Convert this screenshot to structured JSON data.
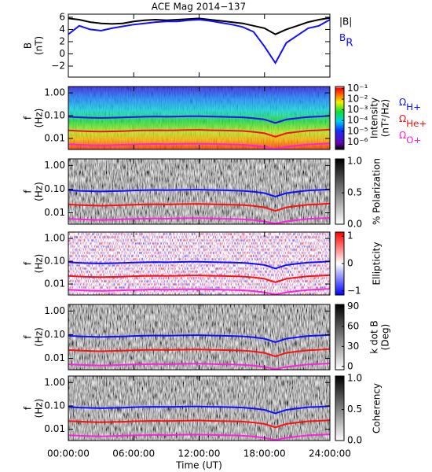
{
  "chart_data": [
    {
      "type": "line",
      "title": "ACE Mag 2014−137",
      "ylabel": [
        "B",
        "(nT)"
      ],
      "xlim": [
        0,
        24
      ],
      "ylim": [
        -3.8,
        6.5
      ],
      "yticks": [
        6,
        4,
        2,
        0,
        {
          "value": -2,
          "label": "−2"
        }
      ],
      "x": [
        0,
        1,
        2,
        3,
        4,
        5,
        6,
        7,
        8,
        9,
        10,
        11,
        12,
        13,
        14,
        15,
        16,
        17,
        18,
        19,
        20,
        21,
        22,
        23,
        24
      ],
      "series": [
        {
          "name": "|B|",
          "color": "#000000",
          "values": [
            5.8,
            5.6,
            5.2,
            5.0,
            4.9,
            5.0,
            5.3,
            5.5,
            5.6,
            5.5,
            5.6,
            5.7,
            5.8,
            5.6,
            5.4,
            5.2,
            5.0,
            4.6,
            4.2,
            3.2,
            4.0,
            4.6,
            5.2,
            5.6,
            5.9
          ]
        },
        {
          "name": "B",
          "sub": "R",
          "color": "#1010ff",
          "values": [
            3.2,
            4.6,
            4.0,
            3.8,
            4.2,
            4.5,
            4.8,
            5.0,
            5.2,
            5.3,
            5.3,
            5.5,
            5.6,
            5.4,
            5.1,
            4.8,
            4.4,
            3.6,
            1.2,
            -1.5,
            1.8,
            3.0,
            4.2,
            4.6,
            5.6
          ]
        }
      ]
    },
    {
      "type": "spectrogram",
      "style": "intensity",
      "ylabel": [
        "f",
        "(Hz)"
      ],
      "xlim": [
        0,
        24
      ],
      "ylim": [
        0.0033,
        1.9
      ],
      "log_y": true,
      "yticks": [
        {
          "value": 1,
          "label": "1.00"
        },
        {
          "value": 0.1,
          "label": "0.10"
        },
        {
          "value": 0.01,
          "label": "0.01"
        }
      ],
      "colorbar": {
        "label": [
          "Intensity",
          "(nT²/Hz)"
        ],
        "lim": [
          2e-07,
          0.15
        ],
        "log": true,
        "ticks": [
          {
            "value": 0.1,
            "label": "10⁻¹"
          },
          {
            "value": 0.01,
            "label": "10⁻²"
          },
          {
            "value": 0.001,
            "label": "10⁻³"
          },
          {
            "value": 0.0001,
            "label": "10⁻⁴"
          },
          {
            "value": 1e-05,
            "label": "10⁻⁵"
          },
          {
            "value": 1e-06,
            "label": "10⁻⁶"
          }
        ]
      },
      "x": [
        0,
        1,
        2,
        3,
        4,
        5,
        6,
        7,
        8,
        9,
        10,
        11,
        12,
        13,
        14,
        15,
        16,
        17,
        18,
        19,
        20,
        21,
        22,
        23,
        24
      ],
      "series": [
        {
          "name": "Ω",
          "sub": "H+",
          "color": "#1010ff",
          "values": [
            0.09,
            0.085,
            0.082,
            0.08,
            0.082,
            0.084,
            0.088,
            0.09,
            0.092,
            0.09,
            0.092,
            0.094,
            0.095,
            0.092,
            0.09,
            0.088,
            0.085,
            0.078,
            0.068,
            0.048,
            0.068,
            0.078,
            0.088,
            0.092,
            0.098
          ]
        },
        {
          "name": "Ω",
          "sub": "He+",
          "color": "#ff1010",
          "values": [
            0.0225,
            0.0213,
            0.0205,
            0.02,
            0.0205,
            0.021,
            0.022,
            0.0225,
            0.023,
            0.0225,
            0.023,
            0.0235,
            0.0238,
            0.023,
            0.0225,
            0.022,
            0.0213,
            0.0195,
            0.017,
            0.012,
            0.017,
            0.0195,
            0.022,
            0.023,
            0.0245
          ]
        },
        {
          "name": "Ω",
          "sub": "O+",
          "color": "#ff20e0",
          "values": [
            0.0056,
            0.0053,
            0.0051,
            0.005,
            0.0051,
            0.0053,
            0.0055,
            0.0056,
            0.0058,
            0.0056,
            0.0058,
            0.0059,
            0.0059,
            0.0058,
            0.0056,
            0.0055,
            0.0053,
            0.0049,
            0.0043,
            0.0035,
            0.0043,
            0.0049,
            0.0055,
            0.0058,
            0.0061
          ]
        }
      ]
    },
    {
      "type": "spectrogram",
      "style": "gray",
      "ylabel": [
        "f",
        "(Hz)"
      ],
      "xlim": [
        0,
        24
      ],
      "ylim": [
        0.0033,
        1.9
      ],
      "log_y": true,
      "yticks": [
        {
          "value": 1,
          "label": "1.00"
        },
        {
          "value": 0.1,
          "label": "0.10"
        },
        {
          "value": 0.01,
          "label": "0.01"
        }
      ],
      "colorbar": {
        "label": [
          "% Polarization"
        ],
        "lim": [
          0,
          1.04
        ],
        "log": false,
        "ticks": [
          {
            "value": 1,
            "label": "1.0"
          },
          {
            "value": 0.5,
            "label": "0.5"
          },
          {
            "value": 0,
            "label": "0.0"
          }
        ]
      },
      "x": [
        0,
        1,
        2,
        3,
        4,
        5,
        6,
        7,
        8,
        9,
        10,
        11,
        12,
        13,
        14,
        15,
        16,
        17,
        18,
        19,
        20,
        21,
        22,
        23,
        24
      ],
      "series": [
        {
          "color": "#1010ff",
          "values": [
            0.09,
            0.085,
            0.082,
            0.08,
            0.082,
            0.084,
            0.088,
            0.09,
            0.092,
            0.09,
            0.092,
            0.094,
            0.095,
            0.092,
            0.09,
            0.088,
            0.085,
            0.078,
            0.068,
            0.048,
            0.068,
            0.078,
            0.088,
            0.092,
            0.098
          ]
        },
        {
          "color": "#ff1010",
          "values": [
            0.0225,
            0.0213,
            0.0205,
            0.02,
            0.0205,
            0.021,
            0.022,
            0.0225,
            0.023,
            0.0225,
            0.023,
            0.0235,
            0.0238,
            0.023,
            0.0225,
            0.022,
            0.0213,
            0.0195,
            0.017,
            0.012,
            0.017,
            0.0195,
            0.022,
            0.023,
            0.0245
          ]
        },
        {
          "color": "#ff20e0",
          "values": [
            0.0056,
            0.0053,
            0.0051,
            0.005,
            0.0051,
            0.0053,
            0.0055,
            0.0056,
            0.0058,
            0.0056,
            0.0058,
            0.0059,
            0.0059,
            0.0058,
            0.0056,
            0.0055,
            0.0053,
            0.0049,
            0.0043,
            0.0035,
            0.0043,
            0.0049,
            0.0055,
            0.0058,
            0.0061
          ]
        }
      ]
    },
    {
      "type": "spectrogram",
      "style": "ellipticity",
      "ylabel": [
        "f",
        "(Hz)"
      ],
      "xlim": [
        0,
        24
      ],
      "ylim": [
        0.0033,
        1.9
      ],
      "log_y": true,
      "yticks": [
        {
          "value": 1,
          "label": "1.00"
        },
        {
          "value": 0.1,
          "label": "0.10"
        },
        {
          "value": 0.01,
          "label": "0.01"
        }
      ],
      "colorbar": {
        "label": [
          "Ellipticity"
        ],
        "lim": [
          -1.15,
          1.15
        ],
        "log": false,
        "ticks": [
          1,
          0,
          {
            "value": -1,
            "label": "−1"
          }
        ]
      },
      "x": [
        0,
        1,
        2,
        3,
        4,
        5,
        6,
        7,
        8,
        9,
        10,
        11,
        12,
        13,
        14,
        15,
        16,
        17,
        18,
        19,
        20,
        21,
        22,
        23,
        24
      ],
      "series": [
        {
          "color": "#1010ff",
          "values": [
            0.09,
            0.085,
            0.082,
            0.08,
            0.082,
            0.084,
            0.088,
            0.09,
            0.092,
            0.09,
            0.092,
            0.094,
            0.095,
            0.092,
            0.09,
            0.088,
            0.085,
            0.078,
            0.068,
            0.048,
            0.068,
            0.078,
            0.088,
            0.092,
            0.098
          ]
        },
        {
          "color": "#ff1010",
          "values": [
            0.0225,
            0.0213,
            0.0205,
            0.02,
            0.0205,
            0.021,
            0.022,
            0.0225,
            0.023,
            0.0225,
            0.023,
            0.0235,
            0.0238,
            0.023,
            0.0225,
            0.022,
            0.0213,
            0.0195,
            0.017,
            0.012,
            0.017,
            0.0195,
            0.022,
            0.023,
            0.0245
          ]
        },
        {
          "color": "#ff20e0",
          "values": [
            0.0056,
            0.0053,
            0.0051,
            0.005,
            0.0051,
            0.0053,
            0.0055,
            0.0056,
            0.0058,
            0.0056,
            0.0058,
            0.0059,
            0.0059,
            0.0058,
            0.0056,
            0.0055,
            0.0053,
            0.0049,
            0.0043,
            0.0035,
            0.0043,
            0.0049,
            0.0055,
            0.0058,
            0.0061
          ]
        }
      ]
    },
    {
      "type": "spectrogram",
      "style": "gray",
      "ylabel": [
        "f",
        "(Hz)"
      ],
      "xlim": [
        0,
        24
      ],
      "ylim": [
        0.0033,
        1.9
      ],
      "log_y": true,
      "yticks": [
        {
          "value": 1,
          "label": "1.00"
        },
        {
          "value": 0.1,
          "label": "0.10"
        },
        {
          "value": 0.01,
          "label": "0.01"
        }
      ],
      "colorbar": {
        "label": [
          "k dot B",
          "(Deg)"
        ],
        "lim": [
          -5,
          93
        ],
        "log": false,
        "ticks": [
          90,
          60,
          30,
          0
        ]
      },
      "x": [
        0,
        1,
        2,
        3,
        4,
        5,
        6,
        7,
        8,
        9,
        10,
        11,
        12,
        13,
        14,
        15,
        16,
        17,
        18,
        19,
        20,
        21,
        22,
        23,
        24
      ],
      "series": [
        {
          "color": "#1010ff",
          "values": [
            0.09,
            0.085,
            0.082,
            0.08,
            0.082,
            0.084,
            0.088,
            0.09,
            0.092,
            0.09,
            0.092,
            0.094,
            0.095,
            0.092,
            0.09,
            0.088,
            0.085,
            0.078,
            0.068,
            0.048,
            0.068,
            0.078,
            0.088,
            0.092,
            0.098
          ]
        },
        {
          "color": "#ff1010",
          "values": [
            0.0225,
            0.0213,
            0.0205,
            0.02,
            0.0205,
            0.021,
            0.022,
            0.0225,
            0.023,
            0.0225,
            0.023,
            0.0235,
            0.0238,
            0.023,
            0.0225,
            0.022,
            0.0213,
            0.0195,
            0.017,
            0.012,
            0.017,
            0.0195,
            0.022,
            0.023,
            0.0245
          ]
        },
        {
          "color": "#ff20e0",
          "values": [
            0.0056,
            0.0053,
            0.0051,
            0.005,
            0.0051,
            0.0053,
            0.0055,
            0.0056,
            0.0058,
            0.0056,
            0.0058,
            0.0059,
            0.0059,
            0.0058,
            0.0056,
            0.0055,
            0.0053,
            0.0049,
            0.0043,
            0.0035,
            0.0043,
            0.0049,
            0.0055,
            0.0058,
            0.0061
          ]
        }
      ]
    },
    {
      "type": "spectrogram",
      "style": "gray",
      "ylabel": [
        "f",
        "(Hz)"
      ],
      "xlim": [
        0,
        24
      ],
      "ylim": [
        0.0033,
        1.9
      ],
      "log_y": true,
      "yticks": [
        {
          "value": 1,
          "label": "1.00"
        },
        {
          "value": 0.1,
          "label": "0.10"
        },
        {
          "value": 0.01,
          "label": "0.01"
        }
      ],
      "colorbar": {
        "label": [
          "Coherency"
        ],
        "lim": [
          0,
          1.04
        ],
        "log": false,
        "ticks": [
          {
            "value": 1,
            "label": "1.0"
          },
          {
            "value": 0.5,
            "label": "0.5"
          },
          {
            "value": 0,
            "label": "0.0"
          }
        ]
      },
      "xlabel": "Time (UT)",
      "xticks": [
        {
          "value": 0,
          "label": "00:00:00"
        },
        {
          "value": 6,
          "label": "06:00:00"
        },
        {
          "value": 12,
          "label": "12:00:00"
        },
        {
          "value": 18,
          "label": "18:00:00"
        },
        {
          "value": 24,
          "label": "24:00:00"
        }
      ],
      "x": [
        0,
        1,
        2,
        3,
        4,
        5,
        6,
        7,
        8,
        9,
        10,
        11,
        12,
        13,
        14,
        15,
        16,
        17,
        18,
        19,
        20,
        21,
        22,
        23,
        24
      ],
      "series": [
        {
          "color": "#1010ff",
          "values": [
            0.09,
            0.085,
            0.082,
            0.08,
            0.082,
            0.084,
            0.088,
            0.09,
            0.092,
            0.09,
            0.092,
            0.094,
            0.095,
            0.092,
            0.09,
            0.088,
            0.085,
            0.078,
            0.068,
            0.048,
            0.068,
            0.078,
            0.088,
            0.092,
            0.098
          ]
        },
        {
          "color": "#ff1010",
          "values": [
            0.0225,
            0.0213,
            0.0205,
            0.02,
            0.0205,
            0.021,
            0.022,
            0.0225,
            0.023,
            0.0225,
            0.023,
            0.0235,
            0.0238,
            0.023,
            0.0225,
            0.022,
            0.0213,
            0.0195,
            0.017,
            0.012,
            0.017,
            0.0195,
            0.022,
            0.023,
            0.0245
          ]
        },
        {
          "color": "#ff20e0",
          "values": [
            0.0056,
            0.0053,
            0.0051,
            0.005,
            0.0051,
            0.0053,
            0.0055,
            0.0056,
            0.0058,
            0.0056,
            0.0058,
            0.0059,
            0.0059,
            0.0058,
            0.0056,
            0.0055,
            0.0053,
            0.0049,
            0.0043,
            0.0035,
            0.0043,
            0.0049,
            0.0055,
            0.0058,
            0.0061
          ]
        }
      ]
    }
  ]
}
